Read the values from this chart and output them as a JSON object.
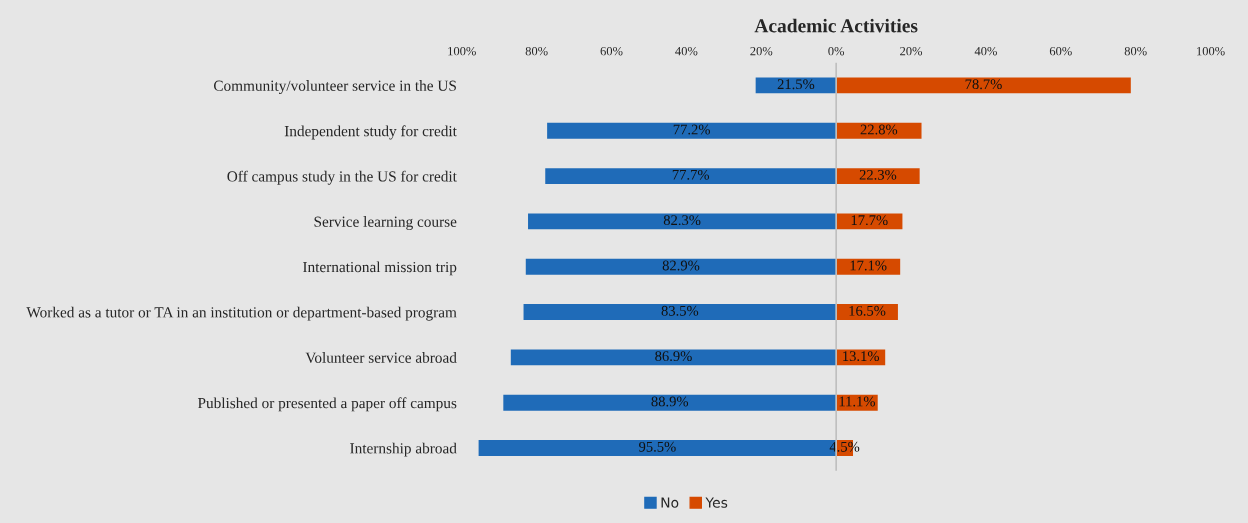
{
  "chart_data": {
    "type": "bar",
    "orientation": "horizontal",
    "title": "Academic Activities",
    "categories": [
      "Community/volunteer service in the US",
      "Independent study for credit",
      "Off campus study in the US for credit",
      "Service learning course",
      "International mission trip",
      "Worked as a tutor or TA in an institution or department-based program",
      "Volunteer service abroad",
      "Published or presented a paper off campus",
      "Internship abroad"
    ],
    "series": [
      {
        "name": "No",
        "color": "#1f6bb8",
        "values": [
          21.5,
          77.2,
          77.7,
          82.3,
          82.9,
          83.5,
          86.9,
          88.9,
          95.5
        ],
        "base": [
          -21.5,
          -77.2,
          -77.7,
          -82.3,
          -82.9,
          -83.5,
          -86.9,
          -88.9,
          -95.5
        ],
        "value_labels": [
          "21.5%",
          "77.2%",
          "77.7%",
          "82.3%",
          "82.9%",
          "83.5%",
          "86.9%",
          "88.9%",
          "95.5%"
        ]
      },
      {
        "name": "Yes",
        "color": "#d64a00",
        "values": [
          78.7,
          22.8,
          22.3,
          17.7,
          17.1,
          16.5,
          13.1,
          11.1,
          4.5
        ],
        "value_labels": [
          "78.7%",
          "22.8%",
          "22.3%",
          "17.7%",
          "17.1%",
          "16.5%",
          "13.1%",
          "11.1%",
          "4.5%"
        ]
      }
    ],
    "xlim": [
      -100,
      100
    ],
    "xticks": [
      {
        "value": -100,
        "label": "100%"
      },
      {
        "value": -80,
        "label": "80%"
      },
      {
        "value": -60,
        "label": "60%"
      },
      {
        "value": -40,
        "label": "40%"
      },
      {
        "value": -20,
        "label": "20%"
      },
      {
        "value": 0,
        "label": "0%"
      },
      {
        "value": 20,
        "label": "20%"
      },
      {
        "value": 40,
        "label": "40%"
      },
      {
        "value": 60,
        "label": "60%"
      },
      {
        "value": 80,
        "label": "80%"
      },
      {
        "value": 100,
        "label": "100%"
      }
    ],
    "ref_lines": [
      {
        "axis": "x",
        "value": 0,
        "color": "#bfbfbf"
      }
    ],
    "grid": false,
    "legend": "bottom"
  }
}
